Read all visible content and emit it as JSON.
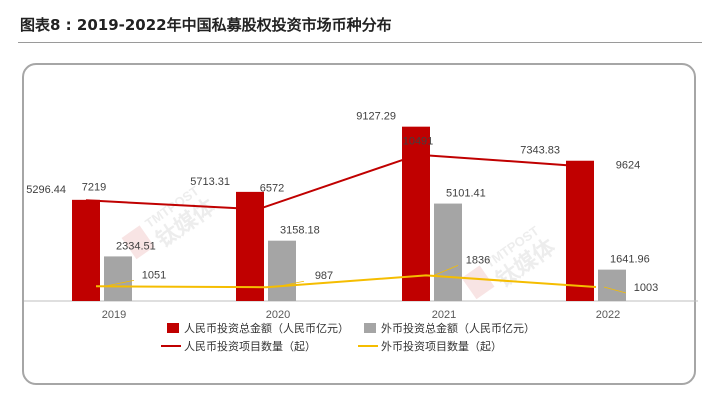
{
  "header": {
    "title": "图表8 : 2019-2022年中国私募股权投资市场币种分布"
  },
  "colors": {
    "rmb_bar": "#C00000",
    "foreign_bar": "#A5A5A5",
    "rmb_line": "#C00000",
    "foreign_line": "#F5BD00",
    "axis": "#BFBFBF"
  },
  "chart_data": {
    "type": "bar",
    "categories": [
      "2019",
      "2020",
      "2021",
      "2022"
    ],
    "series": [
      {
        "name": "人民币投资总金额（人民币亿元）",
        "kind": "bar",
        "values": [
          5296.44,
          5713.31,
          9127.29,
          7343.83
        ],
        "labels": [
          "5296.44",
          "5713.31",
          "9127.29",
          "7343.83"
        ]
      },
      {
        "name": "外币投资总金额（人民币亿元）",
        "kind": "bar",
        "values": [
          2334.51,
          3158.18,
          5101.41,
          1641.96
        ],
        "labels": [
          "2334.51",
          "3158.18",
          "5101.41",
          "1641.96"
        ]
      },
      {
        "name": "人民币投资项目数量（起）",
        "kind": "line",
        "values": [
          7219,
          6572,
          10491,
          9624
        ],
        "labels": [
          "7219",
          "6572",
          "10491",
          "9624"
        ]
      },
      {
        "name": "外币投资项目数量（起）",
        "kind": "line",
        "values": [
          1051,
          987,
          1836,
          1003
        ],
        "labels": [
          "1051",
          "987",
          "1836",
          "1003"
        ]
      }
    ],
    "title": "",
    "xlabel": "",
    "ylabel": "",
    "legend_position": "bottom",
    "grid": false,
    "watermark": "TMTPOST 钛媒体"
  }
}
